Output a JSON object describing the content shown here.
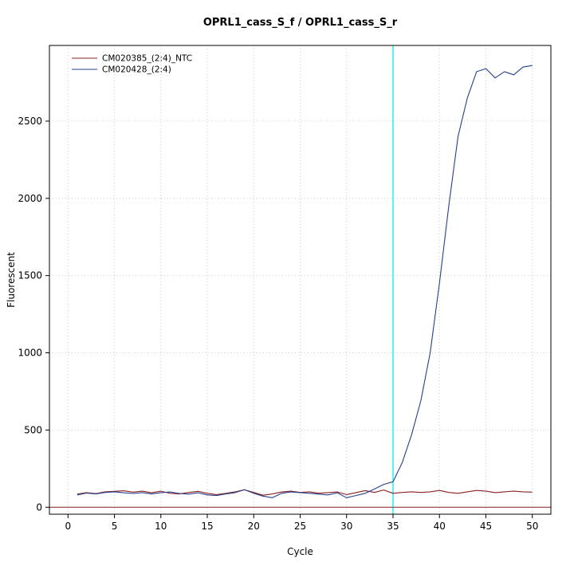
{
  "chart_data": {
    "type": "line",
    "title": "OPRL1_cass_S_f / OPRL1_cass_S_r",
    "xlabel": "Cycle",
    "ylabel": "Fluorescent",
    "xlim": [
      -2,
      52
    ],
    "ylim": [
      -45,
      2990
    ],
    "x_ticks": [
      0,
      5,
      10,
      15,
      20,
      25,
      30,
      35,
      40,
      45,
      50
    ],
    "y_ticks": [
      0,
      500,
      1000,
      1500,
      2000,
      2500
    ],
    "grid": true,
    "grid_color": "#cccccc",
    "legend_position": "top-left",
    "x": [
      1,
      2,
      3,
      4,
      5,
      6,
      7,
      8,
      9,
      10,
      11,
      12,
      13,
      14,
      15,
      16,
      17,
      18,
      19,
      20,
      21,
      22,
      23,
      24,
      25,
      26,
      27,
      28,
      29,
      30,
      31,
      32,
      33,
      34,
      35,
      36,
      37,
      38,
      39,
      40,
      41,
      42,
      43,
      44,
      45,
      46,
      47,
      48,
      49,
      50
    ],
    "series": [
      {
        "name": "CM020385_(2:4)_NTC",
        "color": "#8b2020",
        "values": [
          85,
          95,
          88,
          100,
          103,
          107,
          98,
          104,
          94,
          104,
          90,
          86,
          96,
          103,
          90,
          82,
          90,
          100,
          113,
          96,
          78,
          86,
          99,
          104,
          96,
          100,
          91,
          95,
          99,
          82,
          95,
          108,
          96,
          112,
          90,
          96,
          100,
          96,
          100,
          109,
          96,
          90,
          100,
          109,
          104,
          95,
          100,
          104,
          100,
          98
        ]
      },
      {
        "name": "CM020428_(2:4)",
        "color": "#27408b",
        "values": [
          80,
          92,
          86,
          96,
          100,
          94,
          89,
          95,
          86,
          94,
          99,
          89,
          85,
          94,
          80,
          76,
          86,
          95,
          114,
          90,
          72,
          62,
          90,
          99,
          95,
          90,
          85,
          80,
          94,
          62,
          76,
          90,
          118,
          148,
          165,
          290,
          470,
          690,
          1000,
          1450,
          1950,
          2400,
          2650,
          2820,
          2840,
          2780,
          2820,
          2800,
          2850,
          2860
        ]
      }
    ],
    "threshold_line": {
      "y": 0,
      "color": "#8b2020"
    },
    "vertical_marker": {
      "x": 35,
      "color": "#00eeee"
    }
  }
}
